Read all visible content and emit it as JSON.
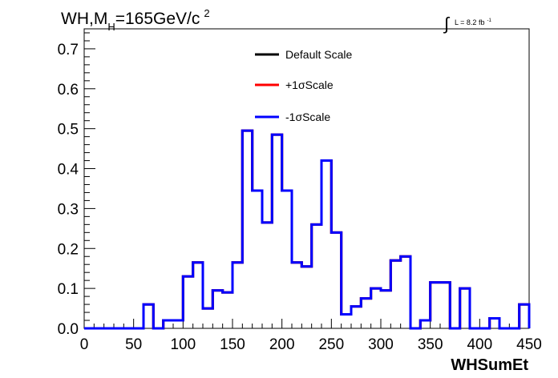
{
  "chart_data": {
    "type": "line",
    "title": {
      "main": "WH,M",
      "subscript": "H",
      "suffix": "=165GeV/c",
      "superscript": "2"
    },
    "luminosity": {
      "text": "L = 8.2 fb",
      "superscript": "-1"
    },
    "xlabel": "WHSumEt",
    "ylabel": "",
    "xlim": [
      0,
      450
    ],
    "ylim": [
      0,
      0.75
    ],
    "x_ticks": [
      0,
      50,
      100,
      150,
      200,
      250,
      300,
      350,
      400,
      450
    ],
    "x_tick_labels": [
      "0",
      "50",
      "100",
      "150",
      "200",
      "250",
      "300",
      "350",
      "400",
      "450"
    ],
    "y_ticks": [
      0.0,
      0.1,
      0.2,
      0.3,
      0.4,
      0.5,
      0.6,
      0.7
    ],
    "y_tick_labels": [
      "0.0",
      "0.1",
      "0.2",
      "0.3",
      "0.4",
      "0.5",
      "0.6",
      "0.7"
    ],
    "grid": false,
    "legend_position": "top-center",
    "bin_edges": [
      0,
      10,
      20,
      30,
      40,
      50,
      60,
      70,
      80,
      90,
      100,
      110,
      120,
      130,
      140,
      150,
      160,
      170,
      180,
      190,
      200,
      210,
      220,
      230,
      240,
      250,
      260,
      270,
      280,
      290,
      300,
      310,
      320,
      330,
      340,
      350,
      360,
      370,
      380,
      390,
      400,
      410,
      420,
      430,
      440,
      450
    ],
    "series": [
      {
        "name": "Default Scale",
        "color": "#000000",
        "values": [
          0,
          0,
          0,
          0,
          0,
          0,
          0.06,
          0,
          0.02,
          0.02,
          0.13,
          0.165,
          0.05,
          0.095,
          0.09,
          0.165,
          0.495,
          0.345,
          0.265,
          0.485,
          0.345,
          0.165,
          0.155,
          0.26,
          0.42,
          0.24,
          0.035,
          0.055,
          0.075,
          0.1,
          0.095,
          0.17,
          0.18,
          0,
          0.02,
          0.115,
          0.115,
          0,
          0.1,
          0,
          0,
          0.025,
          0,
          0,
          0.06,
          0
        ]
      },
      {
        "name": "+1σScale",
        "color": "#ff0000",
        "values": [
          0,
          0,
          0,
          0,
          0,
          0,
          0.06,
          0,
          0.02,
          0.02,
          0.13,
          0.165,
          0.05,
          0.095,
          0.09,
          0.165,
          0.495,
          0.345,
          0.265,
          0.485,
          0.345,
          0.165,
          0.155,
          0.26,
          0.42,
          0.24,
          0.035,
          0.055,
          0.075,
          0.1,
          0.095,
          0.17,
          0.18,
          0,
          0.02,
          0.115,
          0.115,
          0,
          0.1,
          0,
          0,
          0.025,
          0,
          0,
          0.06,
          0
        ]
      },
      {
        "name": "-1σScale",
        "color": "#0000ff",
        "values": [
          0,
          0,
          0,
          0,
          0,
          0,
          0.06,
          0,
          0.02,
          0.02,
          0.13,
          0.165,
          0.05,
          0.095,
          0.09,
          0.165,
          0.495,
          0.345,
          0.265,
          0.485,
          0.345,
          0.165,
          0.155,
          0.26,
          0.42,
          0.24,
          0.035,
          0.055,
          0.075,
          0.1,
          0.095,
          0.17,
          0.18,
          0,
          0.02,
          0.115,
          0.115,
          0,
          0.1,
          0,
          0,
          0.025,
          0,
          0,
          0.06,
          0
        ]
      }
    ]
  }
}
